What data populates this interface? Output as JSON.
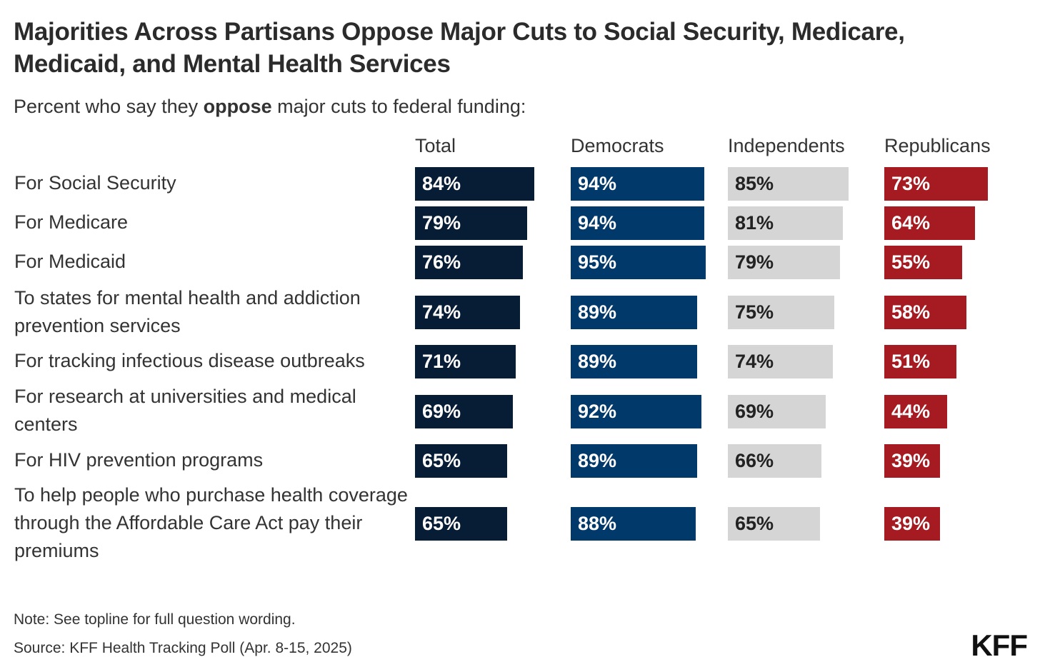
{
  "title": "Majorities Across Partisans Oppose Major Cuts to Social Security, Medicare, Medicaid, and Mental Health Services",
  "subtitle_pre": "Percent who say they ",
  "subtitle_bold": "oppose",
  "subtitle_post": " major cuts to federal funding:",
  "note": "Note: See topline for full question wording.",
  "source": "Source: KFF Health Tracking Poll (Apr. 8-15, 2025)",
  "logo": "KFF",
  "colors": {
    "Total": "#061d35",
    "Democrats": "#02396b",
    "Independents": "#d5d5d5",
    "Republicans": "#a51b21"
  },
  "chart_data": {
    "type": "bar",
    "orientation": "horizontal",
    "layout": "small-multiples",
    "title": "Majorities Across Partisans Oppose Major Cuts to Social Security, Medicare, Medicaid, and Mental Health Services",
    "subtitle": "Percent who say they oppose major cuts to federal funding:",
    "categories": [
      "For Social Security",
      "For Medicare",
      "For Medicaid",
      "To states for mental health and addiction prevention services",
      "For tracking infectious disease outbreaks",
      "For research at universities and medical centers",
      "For HIV prevention programs",
      "To help people who purchase health coverage through the Affordable Care Act pay their premiums"
    ],
    "series": [
      {
        "name": "Total",
        "values": [
          84,
          79,
          76,
          74,
          71,
          69,
          65,
          65
        ]
      },
      {
        "name": "Democrats",
        "values": [
          94,
          94,
          95,
          89,
          89,
          92,
          89,
          88
        ]
      },
      {
        "name": "Independents",
        "values": [
          85,
          81,
          79,
          75,
          74,
          69,
          66,
          65
        ]
      },
      {
        "name": "Republicans",
        "values": [
          73,
          64,
          55,
          58,
          51,
          44,
          39,
          39
        ]
      }
    ],
    "value_suffix": "%",
    "xlim": [
      0,
      100
    ],
    "grid": false
  }
}
